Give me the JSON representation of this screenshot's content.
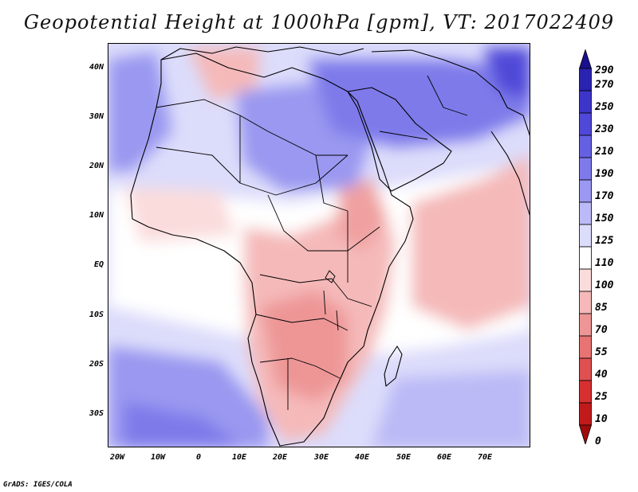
{
  "title": "Geopotential Height at 1000hPa [gpm], VT: 2017022409",
  "credit": "GrADS: IGES/COLA",
  "axes": {
    "lat_labels": [
      "40N",
      "30N",
      "20N",
      "10N",
      "EQ",
      "10S",
      "20S",
      "30S"
    ],
    "lon_labels": [
      "20W",
      "10W",
      "0",
      "10E",
      "20E",
      "30E",
      "40E",
      "50E",
      "60E",
      "70E"
    ]
  },
  "colorbar": {
    "levels": [
      "290",
      "270",
      "250",
      "230",
      "210",
      "190",
      "170",
      "150",
      "125",
      "110",
      "100",
      "85",
      "70",
      "55",
      "40",
      "25",
      "10",
      "0"
    ],
    "colors": [
      "#1a0f8f",
      "#2a22b0",
      "#3c35c8",
      "#5048d8",
      "#6560e2",
      "#7e7aea",
      "#9a98f0",
      "#bcbaf6",
      "#dcdcfb",
      "#ffffff",
      "#fbdcdc",
      "#f5b9b9",
      "#ee9696",
      "#e77373",
      "#df5050",
      "#d63030",
      "#c11a1a",
      "#a00c0c"
    ]
  },
  "map": {
    "region": "Africa, Arabian Peninsula and western Indian Ocean",
    "lon_range": [
      -22,
      80
    ],
    "lat_range": [
      -37,
      45
    ],
    "low_height_areas": [
      "southern/central Africa",
      "Ethiopia",
      "western Indian Ocean",
      "western Mediterranean"
    ],
    "high_height_areas": [
      "North Africa",
      "Eastern Mediterranean",
      "Middle East",
      "Iran",
      "South Atlantic",
      "southern Indian Ocean"
    ]
  }
}
